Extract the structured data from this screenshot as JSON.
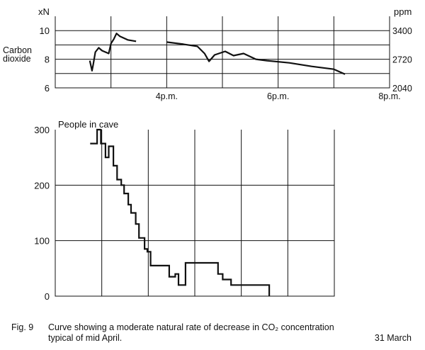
{
  "chart_data": [
    {
      "type": "line",
      "ylabel_left": "Carbon dioxide",
      "unit_left": "xN",
      "unit_right": "ppm",
      "x_ticks": [
        "4p.m.",
        "6p.m.",
        "8p.m."
      ],
      "x_tick_values": [
        16,
        18,
        20
      ],
      "xlim": [
        14,
        20
      ],
      "ylim": [
        6,
        11
      ],
      "y_ticks_left": [
        "6",
        "8",
        "10"
      ],
      "y_tick_values_left": [
        6,
        8,
        10
      ],
      "y_ticks_right": [
        "2040",
        "2720",
        "3400"
      ],
      "y_tick_values_right": [
        6,
        8,
        10
      ],
      "segments": [
        {
          "x": [
            14.62,
            14.66,
            14.68,
            14.72,
            14.78,
            14.84,
            14.9,
            14.96,
            15.0,
            15.05,
            15.1,
            15.16,
            15.3,
            15.45
          ],
          "y": [
            7.9,
            7.2,
            7.6,
            8.5,
            8.8,
            8.6,
            8.5,
            8.4,
            9.1,
            9.4,
            9.8,
            9.6,
            9.35,
            9.25
          ]
        },
        {
          "x": [
            16.0,
            16.3,
            16.55,
            16.68,
            16.76,
            16.86,
            17.05,
            17.2,
            17.38,
            17.6,
            17.8,
            18.2,
            18.6,
            19.0,
            19.2
          ],
          "y": [
            9.2,
            9.05,
            8.9,
            8.4,
            7.85,
            8.3,
            8.55,
            8.25,
            8.4,
            8.0,
            7.9,
            7.75,
            7.5,
            7.3,
            6.95
          ]
        }
      ]
    },
    {
      "type": "line",
      "step": true,
      "title": "People in cave",
      "xlim": [
        14,
        20
      ],
      "ylim": [
        0,
        300
      ],
      "y_ticks": [
        "0",
        "100",
        "200",
        "300"
      ],
      "y_tick_values": [
        0,
        100,
        200,
        300
      ],
      "x": [
        14.75,
        14.9,
        14.98,
        15.08,
        15.15,
        15.25,
        15.33,
        15.42,
        15.48,
        15.57,
        15.63,
        15.73,
        15.8,
        15.92,
        15.98,
        16.05,
        16.13,
        16.45,
        16.58,
        16.65,
        16.8,
        17.4,
        17.5,
        17.6,
        17.78,
        18.0,
        18.4,
        18.6
      ],
      "values": [
        275,
        300,
        275,
        250,
        270,
        235,
        210,
        200,
        185,
        165,
        150,
        130,
        105,
        85,
        80,
        55,
        55,
        35,
        40,
        20,
        60,
        60,
        40,
        30,
        20,
        20,
        20,
        0
      ]
    }
  ],
  "caption": {
    "number": "Fig. 9",
    "line1": "Curve showing a moderate natural rate of decrease in CO₂ concentration",
    "line2": "typical of mid April.",
    "date": "31 March"
  }
}
